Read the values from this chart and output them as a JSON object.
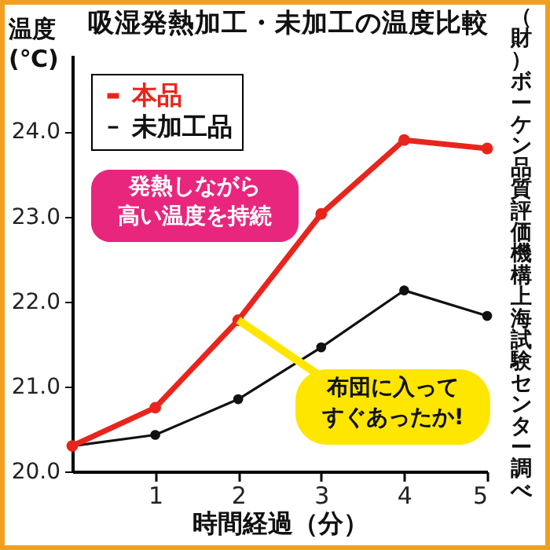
{
  "chart_data": {
    "type": "line",
    "title": "吸湿発熱加工・未加工の温度比較",
    "ylabel": "温度(℃)",
    "xlabel": "時間経過（分）",
    "x": [
      0,
      1,
      2,
      3,
      4,
      5
    ],
    "series": [
      {
        "name": "本品",
        "color": "#e8251c",
        "values": [
          20.3,
          20.75,
          21.78,
          23.03,
          23.9,
          23.8
        ]
      },
      {
        "name": "未加工品",
        "color": "#111111",
        "values": [
          20.3,
          20.43,
          20.85,
          21.46,
          22.13,
          21.83
        ]
      }
    ],
    "xlim": [
      0,
      5
    ],
    "xticks": [
      1,
      2,
      3,
      4,
      5
    ],
    "ylim": [
      20,
      24.9
    ],
    "yticks": [
      {
        "value": 20,
        "label": "20.0"
      },
      {
        "value": 21,
        "label": "21.0"
      },
      {
        "value": 22,
        "label": "22.0"
      },
      {
        "value": 23,
        "label": "23.0"
      },
      {
        "value": 24,
        "label": "24.0"
      }
    ],
    "grid": false,
    "legend": "top left",
    "marker": "circle",
    "annotations": [
      "発熱しながら高い温度を持続",
      {
        "text": "布団に入ってすぐあったか!",
        "x": 2,
        "y": 21.78
      },
      "（財）ボーケン品質評価機構上海試験センター調べ"
    ]
  }
}
